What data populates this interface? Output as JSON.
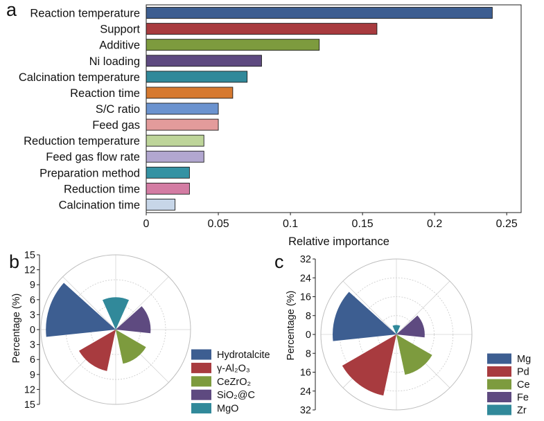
{
  "chart_data": [
    {
      "panel": "a",
      "type": "bar",
      "horizontal": true,
      "categories": [
        "Reaction temperature",
        "Support",
        "Additive",
        "Ni loading",
        "Calcination temperature",
        "Reaction time",
        "S/C ratio",
        "Feed gas",
        "Reduction temperature",
        "Feed gas flow rate",
        "Preparation method",
        "Reduction time",
        "Calcination time"
      ],
      "values": [
        0.24,
        0.16,
        0.12,
        0.08,
        0.07,
        0.06,
        0.05,
        0.05,
        0.04,
        0.04,
        0.03,
        0.03,
        0.02
      ],
      "colors": [
        "#3d5e91",
        "#a83b3f",
        "#7d9b3e",
        "#5e4a80",
        "#31899a",
        "#d6792f",
        "#6b93cf",
        "#e39b9b",
        "#bed59a",
        "#b2a7d0",
        "#3492a3",
        "#d37ca3",
        "#c7d6e8"
      ],
      "xlabel": "Relative importance",
      "xlim": [
        0,
        0.26
      ],
      "xticks": [
        0,
        0.05,
        0.1,
        0.15,
        0.2,
        0.25
      ],
      "grid": false
    },
    {
      "panel": "b",
      "type": "bar",
      "polar": true,
      "categories": [
        "Hydrotalcite",
        "γ-Al₂O₃",
        "CeZrO₂",
        "SiO₂@C",
        "MgO"
      ],
      "values": [
        14,
        8.5,
        7,
        7,
        6.5
      ],
      "colors": [
        "#3d5e91",
        "#a83b3f",
        "#7d9b3e",
        "#5e4a80",
        "#31899a"
      ],
      "ylabel": "Percentage (%)",
      "rlim": [
        0,
        15
      ],
      "rticks": [
        0,
        3,
        6,
        9,
        12,
        15
      ],
      "grid": true,
      "legend": "lower-right"
    },
    {
      "panel": "c",
      "type": "bar",
      "polar": true,
      "categories": [
        "Mg",
        "Pd",
        "Ce",
        "Fe",
        "Zr"
      ],
      "values": [
        27,
        26.5,
        17.5,
        12,
        4
      ],
      "colors": [
        "#3d5e91",
        "#a83b3f",
        "#7d9b3e",
        "#5e4a80",
        "#31899a"
      ],
      "ylabel": "Percentage (%)",
      "rlim": [
        0,
        32
      ],
      "rticks": [
        0,
        8,
        16,
        24,
        32
      ],
      "grid": true,
      "legend": "lower-right"
    }
  ]
}
